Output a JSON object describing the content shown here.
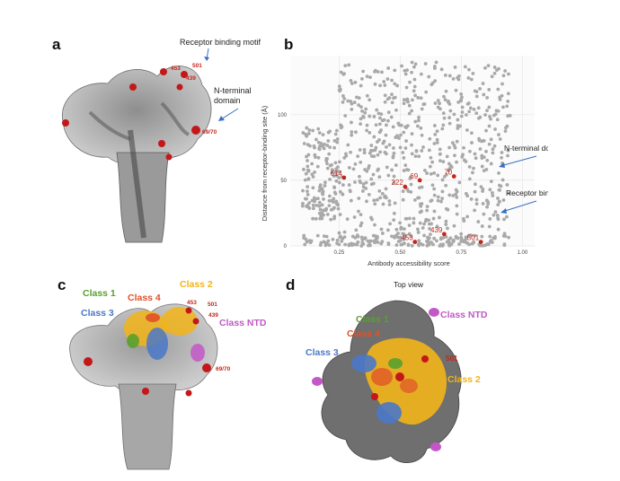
{
  "panels": {
    "a": {
      "letter": "a",
      "labels": {
        "rbm": "Receptor binding motif",
        "ntd": "N-terminal\ndomain"
      },
      "residues": [
        "453",
        "501",
        "439",
        "69/70"
      ]
    },
    "b": {
      "letter": "b"
    },
    "c": {
      "letter": "c",
      "classes": [
        {
          "label": "Class 1",
          "color": "#5aa02c"
        },
        {
          "label": "Class 4",
          "color": "#e0512a"
        },
        {
          "label": "Class 2",
          "color": "#f2b418"
        },
        {
          "label": "Class 3",
          "color": "#4a78c8"
        },
        {
          "label": "Class NTD",
          "color": "#c357c8"
        }
      ],
      "residues": [
        "453",
        "501",
        "439",
        "69/70"
      ]
    },
    "d": {
      "letter": "d",
      "title": "Top view",
      "classes": [
        {
          "label": "Class 1",
          "color": "#5aa02c"
        },
        {
          "label": "Class 4",
          "color": "#e0512a"
        },
        {
          "label": "Class 3",
          "color": "#4a78c8"
        },
        {
          "label": "Class 2",
          "color": "#f2b418"
        },
        {
          "label": "Class NTD",
          "color": "#c357c8"
        }
      ],
      "residues": [
        "501"
      ]
    }
  },
  "chart_data": {
    "type": "scatter",
    "xlabel": "Antibody accessibility score",
    "ylabel": "Distance from receptor-binding site (Å)",
    "xlim": [
      0.05,
      1.05
    ],
    "ylim": [
      0,
      145
    ],
    "xticks": [
      "0.25",
      "0.50",
      "0.75",
      "1.00"
    ],
    "yticks": [
      "0",
      "50",
      "100"
    ],
    "grid": true,
    "point_color": "#a9a9a9",
    "highlight_color": "#c0281e",
    "highlighted": [
      {
        "label": "614",
        "x": 0.27,
        "y": 52
      },
      {
        "label": "69",
        "x": 0.58,
        "y": 50
      },
      {
        "label": "222",
        "x": 0.52,
        "y": 45
      },
      {
        "label": "70",
        "x": 0.72,
        "y": 53
      },
      {
        "label": "439",
        "x": 0.68,
        "y": 9
      },
      {
        "label": "453",
        "x": 0.56,
        "y": 3
      },
      {
        "label": "501",
        "x": 0.83,
        "y": 3
      }
    ],
    "annotations": [
      "N-terminal domain",
      "Receptor binding motif"
    ]
  }
}
